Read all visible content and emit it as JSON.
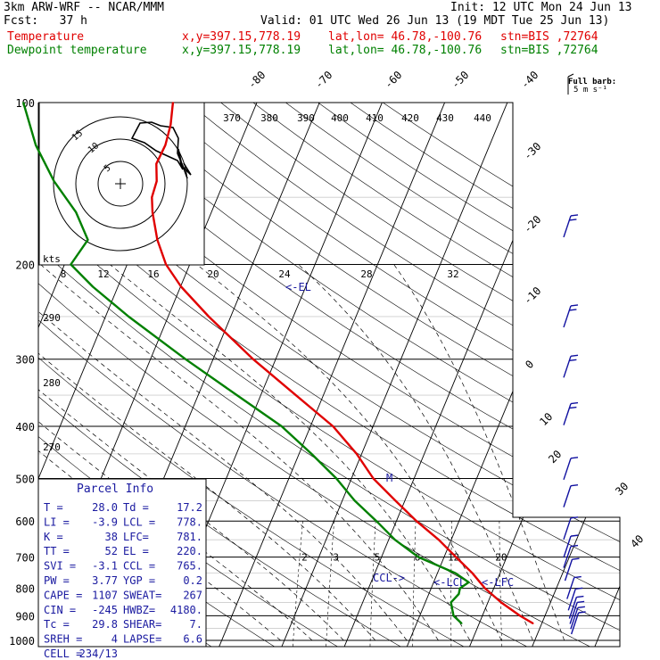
{
  "header": {
    "model": "3km ARW-WRF -- NCAR/MMM",
    "init": "Init: 12 UTC Mon 24 Jun 13",
    "fcst": "Fcst:   37 h",
    "valid": "Valid: 01 UTC Wed 26 Jun 13 (19 MDT Tue 25 Jun 13)",
    "temp_label": "Temperature",
    "dew_label": "Dewpoint temperature",
    "xy": "x,y=397.15,778.19",
    "latlon": "lat,lon= 46.78,-100.76",
    "stn": "stn=BIS ,72764"
  },
  "colors": {
    "temperature": "#e00000",
    "dewpoint": "#008000",
    "barbs": "#1010a0",
    "labels": "#1a1aa0"
  },
  "barb_legend": {
    "title": "Full barb:",
    "value": "5 m s⁻¹"
  },
  "hodograph": {
    "speed_unit": "kts",
    "rings": [
      "5",
      "10",
      "15"
    ]
  },
  "parcel_info": {
    "title": "Parcel Info",
    "rows": [
      {
        "k1": "T   =",
        "v1": "28.0",
        "k2": "Td =",
        "v2": "17.2"
      },
      {
        "k1": "LI  =",
        "v1": "-3.9",
        "k2": "LCL =",
        "v2": "778."
      },
      {
        "k1": "K   =",
        "v1": "38",
        "k2": "LFC=",
        "v2": "781."
      },
      {
        "k1": "TT  =",
        "v1": "52",
        "k2": "EL  =",
        "v2": "220."
      },
      {
        "k1": "SVI =",
        "v1": "-3.1",
        "k2": "CCL =",
        "v2": "765."
      },
      {
        "k1": "PW  =",
        "v1": "3.77",
        "k2": "YGP =",
        "v2": "0.2"
      },
      {
        "k1": "CAPE =",
        "v1": "1107",
        "k2": "SWEAT=",
        "v2": "267"
      },
      {
        "k1": "CIN  =",
        "v1": "-245",
        "k2": "HWBZ=",
        "v2": "4180."
      },
      {
        "k1": "Tc  =",
        "v1": "29.8",
        "k2": "SHEAR=",
        "v2": "7."
      },
      {
        "k1": "SREH =",
        "v1": "4",
        "k2": "LAPSE=",
        "v2": "6.6"
      },
      {
        "k1": "CELL =",
        "v1": "234/13",
        "k2": "",
        "v2": ""
      }
    ]
  },
  "chart_data": {
    "type": "line",
    "pressure_ticks": [
      "100",
      "200",
      "300",
      "400",
      "500",
      "600",
      "700",
      "800",
      "900",
      "1000"
    ],
    "temp_ticks": [
      {
        "label": "-80",
        "value": -80
      },
      {
        "label": "-70",
        "value": -70
      },
      {
        "label": "-60",
        "value": -60
      },
      {
        "label": "-50",
        "value": -50
      },
      {
        "label": "-40",
        "value": -40
      },
      {
        "label": "-30",
        "value": -30
      },
      {
        "label": "-20",
        "value": -20
      },
      {
        "label": "-10",
        "value": -10
      },
      {
        "label": "0",
        "value": 0
      },
      {
        "label": "10",
        "value": 10
      },
      {
        "label": "20",
        "value": 20
      },
      {
        "label": "30",
        "value": 30
      },
      {
        "label": "40",
        "value": 40
      }
    ],
    "theta_labels": [
      "370",
      "380",
      "390",
      "400",
      "410",
      "420",
      "430",
      "440"
    ],
    "theta_left_labels": [
      "290",
      "280",
      "270"
    ],
    "mixing_labels": [
      "2",
      "3",
      "5",
      "8",
      "12",
      "20"
    ],
    "wbz_labels": [
      "8",
      "12",
      "16",
      "20",
      "24",
      "28",
      "32"
    ],
    "annotations": {
      "el": "<-EL",
      "ccl": "CCL->",
      "lcl": "<-LCL",
      "lfc": "<-LFC",
      "m": "M"
    },
    "series": [
      {
        "name": "Temperature",
        "points": [
          [
            930,
            28.6
          ],
          [
            900,
            26.0
          ],
          [
            850,
            22.1
          ],
          [
            800,
            18.6
          ],
          [
            750,
            15.6
          ],
          [
            700,
            11.9
          ],
          [
            650,
            8.0
          ],
          [
            600,
            3.2
          ],
          [
            550,
            -1.5
          ],
          [
            500,
            -6.5
          ],
          [
            450,
            -10.8
          ],
          [
            400,
            -16.4
          ],
          [
            350,
            -24.4
          ],
          [
            300,
            -33.6
          ],
          [
            250,
            -43.5
          ],
          [
            220,
            -49.9
          ],
          [
            200,
            -53.8
          ],
          [
            180,
            -56.8
          ],
          [
            160,
            -59.4
          ],
          [
            150,
            -60.5
          ],
          [
            140,
            -60.8
          ],
          [
            130,
            -62.0
          ],
          [
            120,
            -61.8
          ],
          [
            110,
            -62.3
          ],
          [
            100,
            -63.4
          ]
        ]
      },
      {
        "name": "Dewpoint temperature",
        "points": [
          [
            930,
            17.2
          ],
          [
            900,
            15.4
          ],
          [
            850,
            14.1
          ],
          [
            820,
            14.8
          ],
          [
            800,
            14.6
          ],
          [
            780,
            15.6
          ],
          [
            750,
            12.9
          ],
          [
            700,
            5.9
          ],
          [
            650,
            1.0
          ],
          [
            600,
            -3.2
          ],
          [
            550,
            -8.0
          ],
          [
            500,
            -12.4
          ],
          [
            450,
            -18.0
          ],
          [
            400,
            -24.6
          ],
          [
            350,
            -33.8
          ],
          [
            300,
            -44.4
          ],
          [
            250,
            -56.3
          ],
          [
            220,
            -64.0
          ],
          [
            200,
            -69.0
          ],
          [
            180,
            -67.9
          ],
          [
            160,
            -71.6
          ],
          [
            140,
            -77.2
          ],
          [
            120,
            -82.5
          ],
          [
            100,
            -87.3
          ]
        ]
      }
    ],
    "wind_levels": [
      170,
      250,
      310,
      380,
      480,
      540,
      620,
      670,
      700,
      740,
      800,
      840,
      870,
      890,
      910,
      930
    ]
  }
}
